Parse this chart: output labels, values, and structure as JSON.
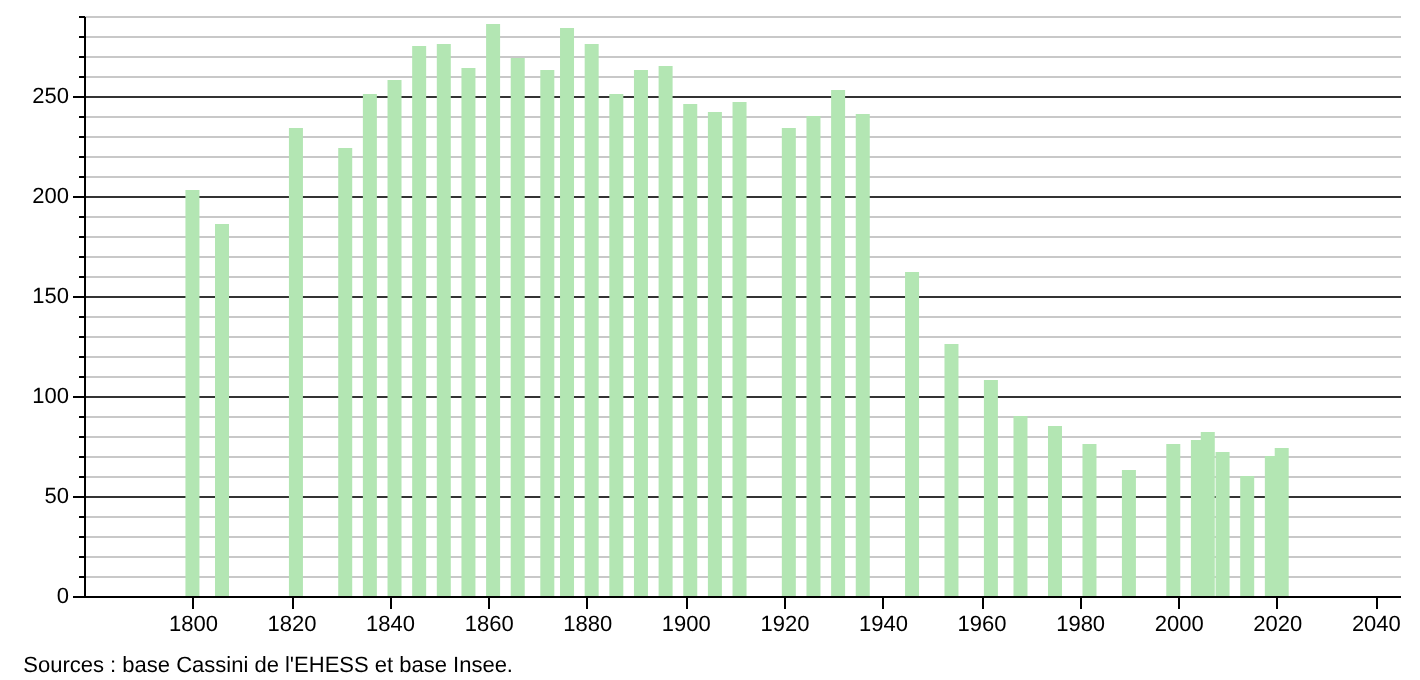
{
  "chart_data": {
    "type": "bar",
    "x": [
      1800,
      1806,
      1821,
      1831,
      1836,
      1841,
      1846,
      1851,
      1856,
      1861,
      1866,
      1872,
      1876,
      1881,
      1886,
      1891,
      1896,
      1901,
      1906,
      1911,
      1921,
      1926,
      1931,
      1936,
      1946,
      1954,
      1962,
      1968,
      1975,
      1982,
      1990,
      1999,
      2004,
      2006,
      2009,
      2014,
      2019,
      2021
    ],
    "values": [
      203,
      186,
      234,
      224,
      251,
      258,
      275,
      276,
      264,
      286,
      269,
      263,
      284,
      276,
      251,
      263,
      265,
      246,
      242,
      247,
      234,
      240,
      253,
      241,
      162,
      126,
      108,
      90,
      85,
      76,
      63,
      76,
      78,
      82,
      72,
      60,
      70,
      74
    ],
    "color": "#b3e6b3",
    "xlim": [
      1778,
      2045
    ],
    "xticks": [
      1800,
      1820,
      1840,
      1860,
      1880,
      1900,
      1920,
      1940,
      1960,
      1980,
      2000,
      2020,
      2040
    ],
    "ylim": [
      0,
      290
    ],
    "yticks": [
      0,
      {
        "value": 10,
        "label": null
      },
      {
        "value": 20,
        "label": null
      },
      {
        "value": 30,
        "label": null
      },
      {
        "value": 40,
        "label": null
      },
      50,
      {
        "value": 60,
        "label": null
      },
      {
        "value": 70,
        "label": null
      },
      {
        "value": 80,
        "label": null
      },
      {
        "value": 90,
        "label": null
      },
      100,
      {
        "value": 110,
        "label": null
      },
      {
        "value": 120,
        "label": null
      },
      {
        "value": 130,
        "label": null
      },
      {
        "value": 140,
        "label": null
      },
      150,
      {
        "value": 160,
        "label": null
      },
      {
        "value": 170,
        "label": null
      },
      {
        "value": 180,
        "label": null
      },
      {
        "value": 190,
        "label": null
      },
      200,
      {
        "value": 210,
        "label": null
      },
      {
        "value": 220,
        "label": null
      },
      {
        "value": 230,
        "label": null
      },
      {
        "value": 240,
        "label": null
      },
      250,
      {
        "value": 260,
        "label": null
      },
      {
        "value": 270,
        "label": null
      },
      {
        "value": 280,
        "label": null
      },
      {
        "value": 290,
        "label": null
      }
    ],
    "grid": "y",
    "annotations": [
      "Sources : base Cassini de l'EHESS et base Insee."
    ]
  }
}
